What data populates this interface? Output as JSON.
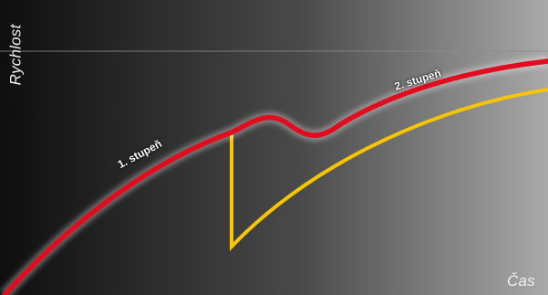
{
  "axes": {
    "y_label": "Rychlost",
    "x_label": "Čas"
  },
  "curves": [
    {
      "label": "1. stupeň",
      "color": "#e30b1e"
    },
    {
      "label": "2. stupeň",
      "color": "#e30b1e"
    }
  ],
  "colors": {
    "gear_curve": "#e30b1e",
    "transition_curve": "#f7c600",
    "background_dark": "#0f0f0f",
    "background_light": "#a8a8a8"
  }
}
